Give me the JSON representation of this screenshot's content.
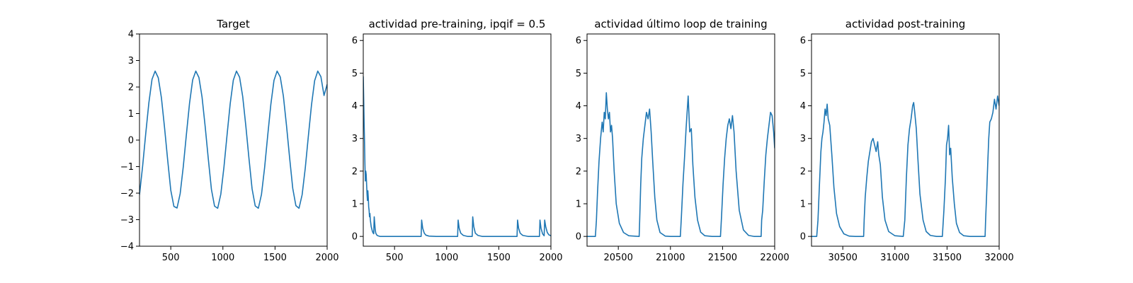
{
  "colors": {
    "series": "#1f77b4",
    "axes": "#000000",
    "background": "#ffffff"
  },
  "chart_data": [
    {
      "type": "line",
      "title": "Target",
      "xlim": [
        200,
        2000
      ],
      "ylim": [
        -4,
        4
      ],
      "xticks": [
        500,
        1000,
        1500,
        2000
      ],
      "xtick_labels": [
        "500",
        "1000",
        "1500",
        "2000"
      ],
      "yticks": [
        -4,
        -3,
        -2,
        -1,
        0,
        1,
        2,
        3,
        4
      ],
      "ytick_labels": [
        "−4",
        "−3",
        "−2",
        "−1",
        "0",
        "1",
        "2",
        "3",
        "4"
      ],
      "grid": false,
      "series": [
        {
          "x": [
            200,
            230,
            260,
            290,
            320,
            350,
            380,
            410,
            440,
            470,
            500,
            530,
            560,
            590,
            620,
            650,
            680,
            710,
            740,
            770,
            800,
            830,
            860,
            890,
            920,
            950,
            980,
            1010,
            1040,
            1070,
            1100,
            1130,
            1160,
            1190,
            1220,
            1250,
            1280,
            1310,
            1340,
            1370,
            1400,
            1430,
            1460,
            1490,
            1520,
            1550,
            1580,
            1610,
            1640,
            1670,
            1700,
            1730,
            1760,
            1790,
            1820,
            1850,
            1880,
            1910,
            1940,
            1970,
            2000
          ],
          "y": [
            -2.06,
            -0.98,
            0.25,
            1.41,
            2.29,
            2.6,
            2.35,
            1.6,
            0.48,
            -0.74,
            -1.89,
            -2.5,
            -2.56,
            -2.02,
            -1.0,
            0.22,
            1.39,
            2.27,
            2.6,
            2.36,
            1.62,
            0.51,
            -0.71,
            -1.86,
            -2.49,
            -2.57,
            -2.04,
            -1.02,
            0.2,
            1.37,
            2.26,
            2.6,
            2.37,
            1.64,
            0.53,
            -0.69,
            -1.84,
            -2.48,
            -2.57,
            -2.05,
            -1.04,
            0.18,
            1.35,
            2.25,
            2.6,
            2.38,
            1.66,
            0.55,
            -0.67,
            -1.82,
            -2.47,
            -2.57,
            -2.06,
            -1.06,
            0.16,
            1.33,
            2.24,
            2.6,
            2.39,
            1.68,
            2.1
          ]
        }
      ]
    },
    {
      "type": "line",
      "title": "actividad pre-training, ipqif = 0.5",
      "xlim": [
        200,
        2000
      ],
      "ylim": [
        -0.3,
        6.2
      ],
      "xticks": [
        500,
        1000,
        1500,
        2000
      ],
      "xtick_labels": [
        "500",
        "1000",
        "1500",
        "2000"
      ],
      "yticks": [
        0,
        1,
        2,
        3,
        4,
        5,
        6
      ],
      "ytick_labels": [
        "0",
        "1",
        "2",
        "3",
        "4",
        "5",
        "6"
      ],
      "grid": false,
      "series": [
        {
          "x": [
            200,
            204,
            208,
            212,
            216,
            220,
            224,
            228,
            232,
            236,
            240,
            244,
            248,
            252,
            256,
            260,
            264,
            268,
            272,
            276,
            280,
            284,
            288,
            292,
            296,
            300,
            305,
            310,
            315,
            320,
            330,
            340,
            360,
            400,
            500,
            700,
            755,
            760,
            770,
            785,
            800,
            830,
            900,
            1050,
            1105,
            1110,
            1120,
            1135,
            1160,
            1200,
            1245,
            1250,
            1260,
            1275,
            1300,
            1340,
            1500,
            1675,
            1680,
            1690,
            1705,
            1730,
            1780,
            1890,
            1895,
            1905,
            1920,
            1935,
            1940,
            1950,
            1965,
            1980,
            2000
          ],
          "y": [
            4.9,
            4.2,
            3.5,
            2.9,
            2.2,
            1.7,
            2.0,
            1.9,
            1.6,
            1.3,
            1.1,
            1.4,
            1.2,
            0.9,
            0.8,
            0.6,
            0.7,
            0.5,
            0.4,
            0.3,
            0.25,
            0.2,
            0.15,
            0.12,
            0.1,
            0.08,
            0.6,
            0.4,
            0.2,
            0.1,
            0.04,
            0.02,
            0.0,
            0.0,
            0.0,
            0.0,
            0.0,
            0.5,
            0.25,
            0.1,
            0.04,
            0.01,
            0.0,
            0.0,
            0.0,
            0.5,
            0.25,
            0.1,
            0.03,
            0.0,
            0.0,
            0.6,
            0.3,
            0.1,
            0.03,
            0.0,
            0.0,
            0.0,
            0.5,
            0.25,
            0.1,
            0.03,
            0.0,
            0.0,
            0.5,
            0.25,
            0.08,
            0.02,
            0.5,
            0.3,
            0.12,
            0.05,
            0.02
          ]
        }
      ]
    },
    {
      "type": "line",
      "title": "actividad último loop de training",
      "xlim": [
        20200,
        22000
      ],
      "ylim": [
        -0.3,
        6.2
      ],
      "xticks": [
        20500,
        21000,
        21500,
        22000
      ],
      "xtick_labels": [
        "20500",
        "21000",
        "21500",
        "22000"
      ],
      "yticks": [
        0,
        1,
        2,
        3,
        4,
        5,
        6
      ],
      "ytick_labels": [
        "0",
        "1",
        "2",
        "3",
        "4",
        "5",
        "6"
      ],
      "grid": false,
      "series": [
        {
          "x": [
            20200,
            20280,
            20290,
            20300,
            20315,
            20330,
            20345,
            20355,
            20365,
            20375,
            20385,
            20395,
            20405,
            20415,
            20425,
            20435,
            20445,
            20460,
            20480,
            20510,
            20550,
            20600,
            20700,
            20705,
            20715,
            20725,
            20740,
            20755,
            20770,
            20785,
            20800,
            20815,
            20830,
            20850,
            20870,
            20900,
            20950,
            21000,
            21095,
            21105,
            21120,
            21135,
            21150,
            21160,
            21170,
            21185,
            21200,
            21215,
            21235,
            21260,
            21290,
            21330,
            21400,
            21480,
            21490,
            21505,
            21520,
            21535,
            21550,
            21565,
            21580,
            21595,
            21610,
            21630,
            21660,
            21700,
            21750,
            21800,
            21870,
            21875,
            21885,
            21900,
            21915,
            21930,
            21945,
            21960,
            21975,
            21990,
            22000
          ],
          "y": [
            0.0,
            0.0,
            0.5,
            1.3,
            2.3,
            3.0,
            3.5,
            3.2,
            3.8,
            3.6,
            4.4,
            3.9,
            3.6,
            3.8,
            3.2,
            3.4,
            3.0,
            2.0,
            1.0,
            0.4,
            0.12,
            0.02,
            0.0,
            0.5,
            1.6,
            2.4,
            3.0,
            3.4,
            3.8,
            3.6,
            3.9,
            3.2,
            2.3,
            1.2,
            0.5,
            0.12,
            0.01,
            0.0,
            0.0,
            0.6,
            1.6,
            2.4,
            3.3,
            3.8,
            4.3,
            3.2,
            3.3,
            2.2,
            1.2,
            0.5,
            0.13,
            0.02,
            0.0,
            0.0,
            0.6,
            1.6,
            2.4,
            3.0,
            3.4,
            3.6,
            3.3,
            3.7,
            3.2,
            2.0,
            0.8,
            0.2,
            0.03,
            0.0,
            0.0,
            0.5,
            0.8,
            1.7,
            2.5,
            3.0,
            3.4,
            3.8,
            3.7,
            3.2,
            2.7
          ]
        }
      ]
    },
    {
      "type": "line",
      "title": "actividad post-training",
      "xlim": [
        30200,
        32000
      ],
      "ylim": [
        -0.3,
        6.2
      ],
      "xticks": [
        30500,
        31000,
        31500,
        32000
      ],
      "xtick_labels": [
        "30500",
        "31000",
        "31500",
        "32000"
      ],
      "yticks": [
        0,
        1,
        2,
        3,
        4,
        5,
        6
      ],
      "ytick_labels": [
        "0",
        "1",
        "2",
        "3",
        "4",
        "5",
        "6"
      ],
      "grid": false,
      "series": [
        {
          "x": [
            30200,
            30250,
            30262,
            30275,
            30290,
            30300,
            30310,
            30320,
            30330,
            30340,
            30350,
            30360,
            30375,
            30395,
            30415,
            30440,
            30470,
            30510,
            30560,
            30620,
            30700,
            30705,
            30715,
            30730,
            30745,
            30760,
            30775,
            30790,
            30805,
            30820,
            30835,
            30845,
            30860,
            30880,
            30905,
            30940,
            31000,
            31080,
            31095,
            31110,
            31125,
            31140,
            31155,
            31170,
            31180,
            31190,
            31205,
            31220,
            31240,
            31270,
            31300,
            31340,
            31400,
            31455,
            31470,
            31485,
            31495,
            31505,
            31515,
            31525,
            31535,
            31550,
            31570,
            31590,
            31620,
            31660,
            31720,
            31800,
            31865,
            31870,
            31880,
            31890,
            31900,
            31910,
            31925,
            31940,
            31955,
            31970,
            31985,
            32000
          ],
          "y": [
            0.0,
            0.0,
            0.5,
            1.5,
            2.6,
            3.0,
            3.2,
            3.5,
            3.9,
            3.7,
            4.05,
            3.6,
            3.4,
            2.5,
            1.5,
            0.7,
            0.3,
            0.08,
            0.01,
            0.0,
            0.0,
            0.5,
            1.2,
            1.8,
            2.3,
            2.6,
            2.9,
            3.0,
            2.8,
            2.6,
            2.9,
            2.5,
            2.2,
            1.2,
            0.5,
            0.15,
            0.02,
            0.0,
            0.5,
            1.8,
            2.8,
            3.3,
            3.6,
            4.0,
            4.1,
            3.8,
            3.3,
            2.4,
            1.3,
            0.5,
            0.15,
            0.03,
            0.0,
            0.0,
            0.8,
            1.8,
            2.8,
            3.0,
            3.4,
            2.5,
            2.7,
            1.8,
            1.0,
            0.4,
            0.12,
            0.02,
            0.0,
            0.0,
            0.0,
            0.5,
            1.3,
            2.2,
            3.0,
            3.5,
            3.6,
            3.8,
            4.2,
            3.9,
            4.3,
            4.0
          ]
        }
      ]
    }
  ]
}
